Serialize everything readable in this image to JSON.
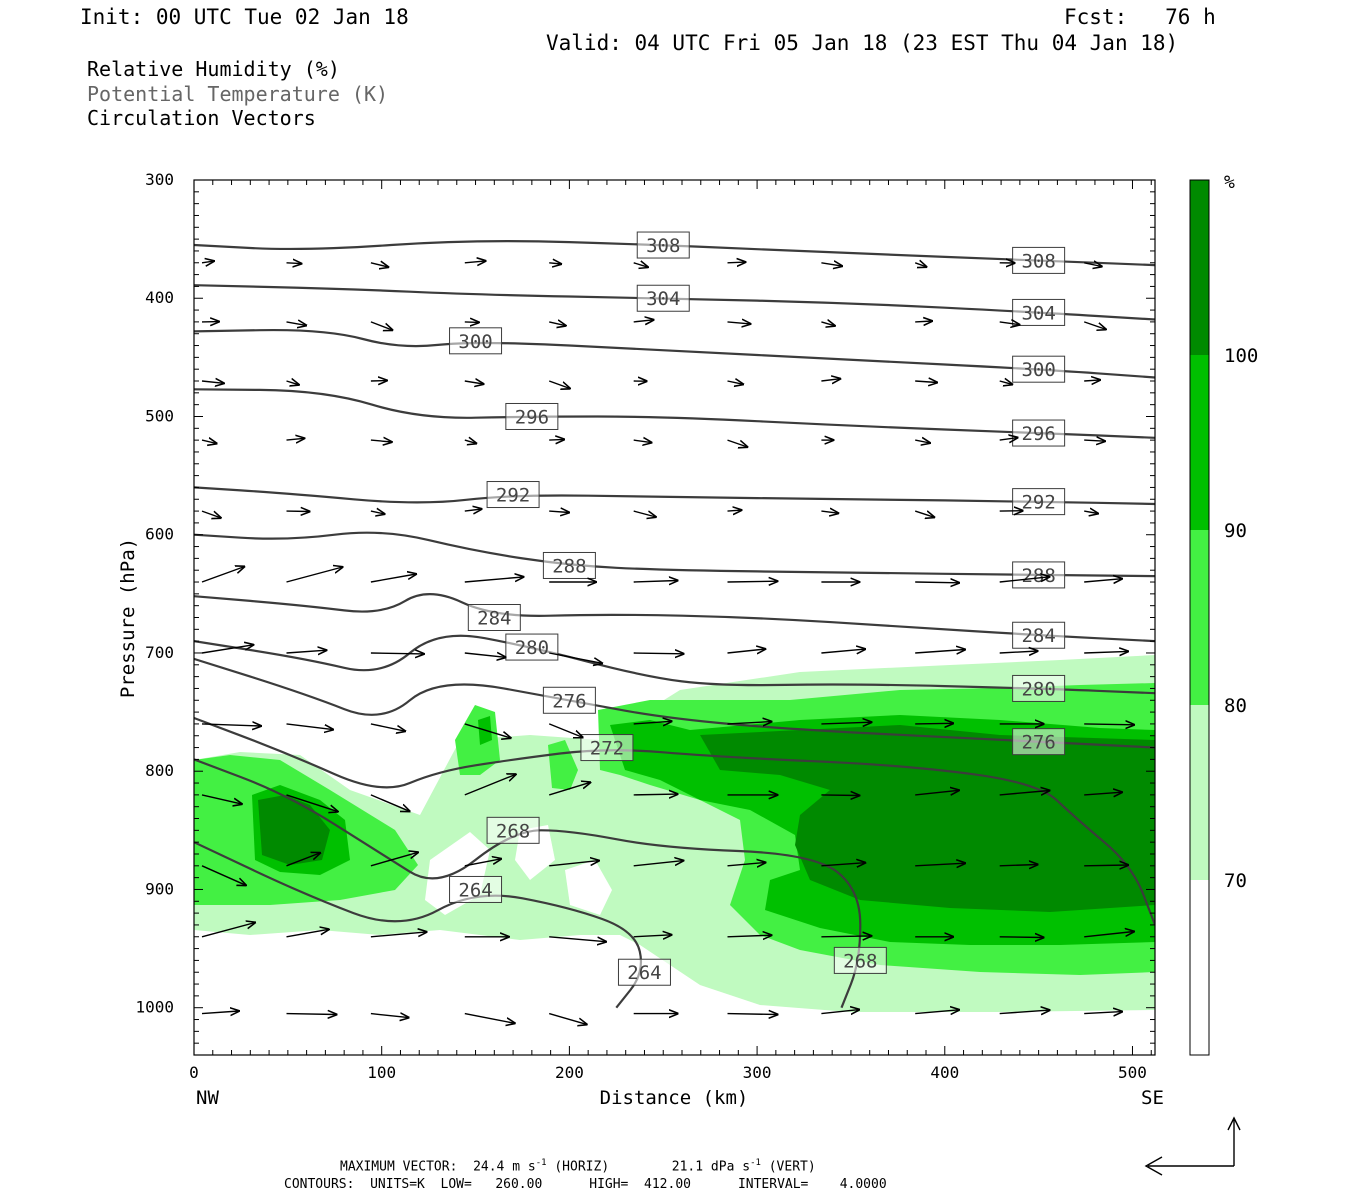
{
  "header": {
    "init": "Init: 00 UTC Tue 02 Jan 18",
    "fcst": "Fcst:   76 h",
    "valid": "Valid: 04 UTC Fri 05 Jan 18 (23 EST Thu 04 Jan 18)"
  },
  "legend": {
    "line1": "Relative Humidity (%)",
    "line2": "Potential Temperature (K)",
    "line3": "Circulation Vectors"
  },
  "footer": {
    "max_vector_label": "MAXIMUM VECTOR:",
    "max_vector_horiz": "24.4 m s",
    "horiz_exp": "-1",
    "horiz_tag": "(HORIZ)",
    "max_vector_vert": "21.1 dPa s",
    "vert_exp": "-1",
    "vert_tag": "(VERT)",
    "contours": "CONTOURS:  UNITS=K  LOW=   260.00      HIGH=  412.00      INTERVAL=    4.0000"
  },
  "colors": {
    "rh70": "#c0fac0",
    "rh80": "#43f043",
    "rh90": "#00c000",
    "rh100": "#008a00",
    "contour": "#3c3c3c",
    "frame": "#000000"
  },
  "chart_data": {
    "type": "cross-section",
    "title": "",
    "xlabel": "Distance (km)",
    "ylabel": "Pressure (hPa)",
    "xlim": [
      0,
      512
    ],
    "ylim": [
      1040,
      300
    ],
    "x_ticks": [
      "0",
      "100",
      "200",
      "300",
      "400",
      "500"
    ],
    "y_ticks": [
      "300",
      "400",
      "500",
      "600",
      "700",
      "800",
      "900",
      "1000"
    ],
    "x_end_labels": {
      "left": "NW",
      "right": "SE"
    },
    "colorbar": {
      "unit": "%",
      "levels": [
        "70",
        "80",
        "90",
        "100"
      ],
      "colors": [
        "#ffffff",
        "#c0fac0",
        "#43f043",
        "#00c000",
        "#008a00"
      ]
    },
    "theta_contours": [
      {
        "label": "308",
        "points": [
          [
            0,
            355
          ],
          [
            60,
            360
          ],
          [
            150,
            350
          ],
          [
            250,
            355
          ],
          [
            350,
            362
          ],
          [
            450,
            368
          ],
          [
            512,
            372
          ]
        ]
      },
      {
        "label": "304",
        "points": [
          [
            0,
            389
          ],
          [
            80,
            392
          ],
          [
            150,
            397
          ],
          [
            250,
            400
          ],
          [
            350,
            404
          ],
          [
            450,
            412
          ],
          [
            512,
            418
          ]
        ]
      },
      {
        "label": "300",
        "points": [
          [
            0,
            428
          ],
          [
            70,
            426
          ],
          [
            110,
            443
          ],
          [
            150,
            436
          ],
          [
            250,
            444
          ],
          [
            350,
            452
          ],
          [
            450,
            460
          ],
          [
            512,
            467
          ]
        ]
      },
      {
        "label": "296",
        "points": [
          [
            0,
            477
          ],
          [
            70,
            478
          ],
          [
            120,
            502
          ],
          [
            180,
            500
          ],
          [
            250,
            500
          ],
          [
            350,
            508
          ],
          [
            450,
            514
          ],
          [
            512,
            518
          ]
        ]
      },
      {
        "label": "292",
        "points": [
          [
            0,
            560
          ],
          [
            50,
            565
          ],
          [
            120,
            575
          ],
          [
            170,
            566
          ],
          [
            250,
            568
          ],
          [
            350,
            570
          ],
          [
            450,
            572
          ],
          [
            512,
            574
          ]
        ]
      },
      {
        "label": "288",
        "points": [
          [
            0,
            600
          ],
          [
            50,
            605
          ],
          [
            100,
            595
          ],
          [
            150,
            614
          ],
          [
            200,
            626
          ],
          [
            250,
            630
          ],
          [
            350,
            632
          ],
          [
            450,
            634
          ],
          [
            512,
            635
          ]
        ]
      },
      {
        "label": "284",
        "points": [
          [
            0,
            652
          ],
          [
            60,
            660
          ],
          [
            100,
            668
          ],
          [
            125,
            644
          ],
          [
            160,
            670
          ],
          [
            220,
            667
          ],
          [
            300,
            670
          ],
          [
            380,
            678
          ],
          [
            450,
            685
          ],
          [
            512,
            690
          ]
        ]
      },
      {
        "label": "280",
        "points": [
          [
            0,
            690
          ],
          [
            60,
            705
          ],
          [
            100,
            720
          ],
          [
            130,
            680
          ],
          [
            180,
            695
          ],
          [
            240,
            720
          ],
          [
            280,
            728
          ],
          [
            350,
            726
          ],
          [
            450,
            730
          ],
          [
            512,
            734
          ]
        ]
      },
      {
        "label": "276",
        "points": [
          [
            0,
            705
          ],
          [
            60,
            735
          ],
          [
            100,
            760
          ],
          [
            130,
            720
          ],
          [
            200,
            740
          ],
          [
            250,
            755
          ],
          [
            320,
            765
          ],
          [
            450,
            775
          ],
          [
            512,
            780
          ]
        ]
      },
      {
        "label": "272",
        "points": [
          [
            0,
            755
          ],
          [
            50,
            785
          ],
          [
            100,
            820
          ],
          [
            130,
            800
          ],
          [
            170,
            790
          ],
          [
            220,
            780
          ],
          [
            280,
            788
          ],
          [
            380,
            795
          ],
          [
            450,
            810
          ],
          [
            470,
            840
          ],
          [
            500,
            880
          ],
          [
            512,
            930
          ]
        ]
      },
      {
        "label": "268",
        "points": [
          [
            0,
            790
          ],
          [
            50,
            820
          ],
          [
            100,
            870
          ],
          [
            130,
            900
          ],
          [
            170,
            850
          ],
          [
            200,
            850
          ],
          [
            250,
            865
          ],
          [
            330,
            870
          ],
          [
            355,
            900
          ],
          [
            355,
            960
          ],
          [
            345,
            1000
          ]
        ]
      },
      {
        "label": "264",
        "points": [
          [
            0,
            860
          ],
          [
            60,
            905
          ],
          [
            110,
            935
          ],
          [
            150,
            900
          ],
          [
            200,
            915
          ],
          [
            235,
            935
          ],
          [
            240,
            970
          ],
          [
            225,
            1000
          ]
        ]
      }
    ],
    "max_vector_horizontal": 24.4,
    "max_vector_vertical": 21.1,
    "contour_low": 260.0,
    "contour_high": 412.0,
    "contour_interval": 4.0
  }
}
